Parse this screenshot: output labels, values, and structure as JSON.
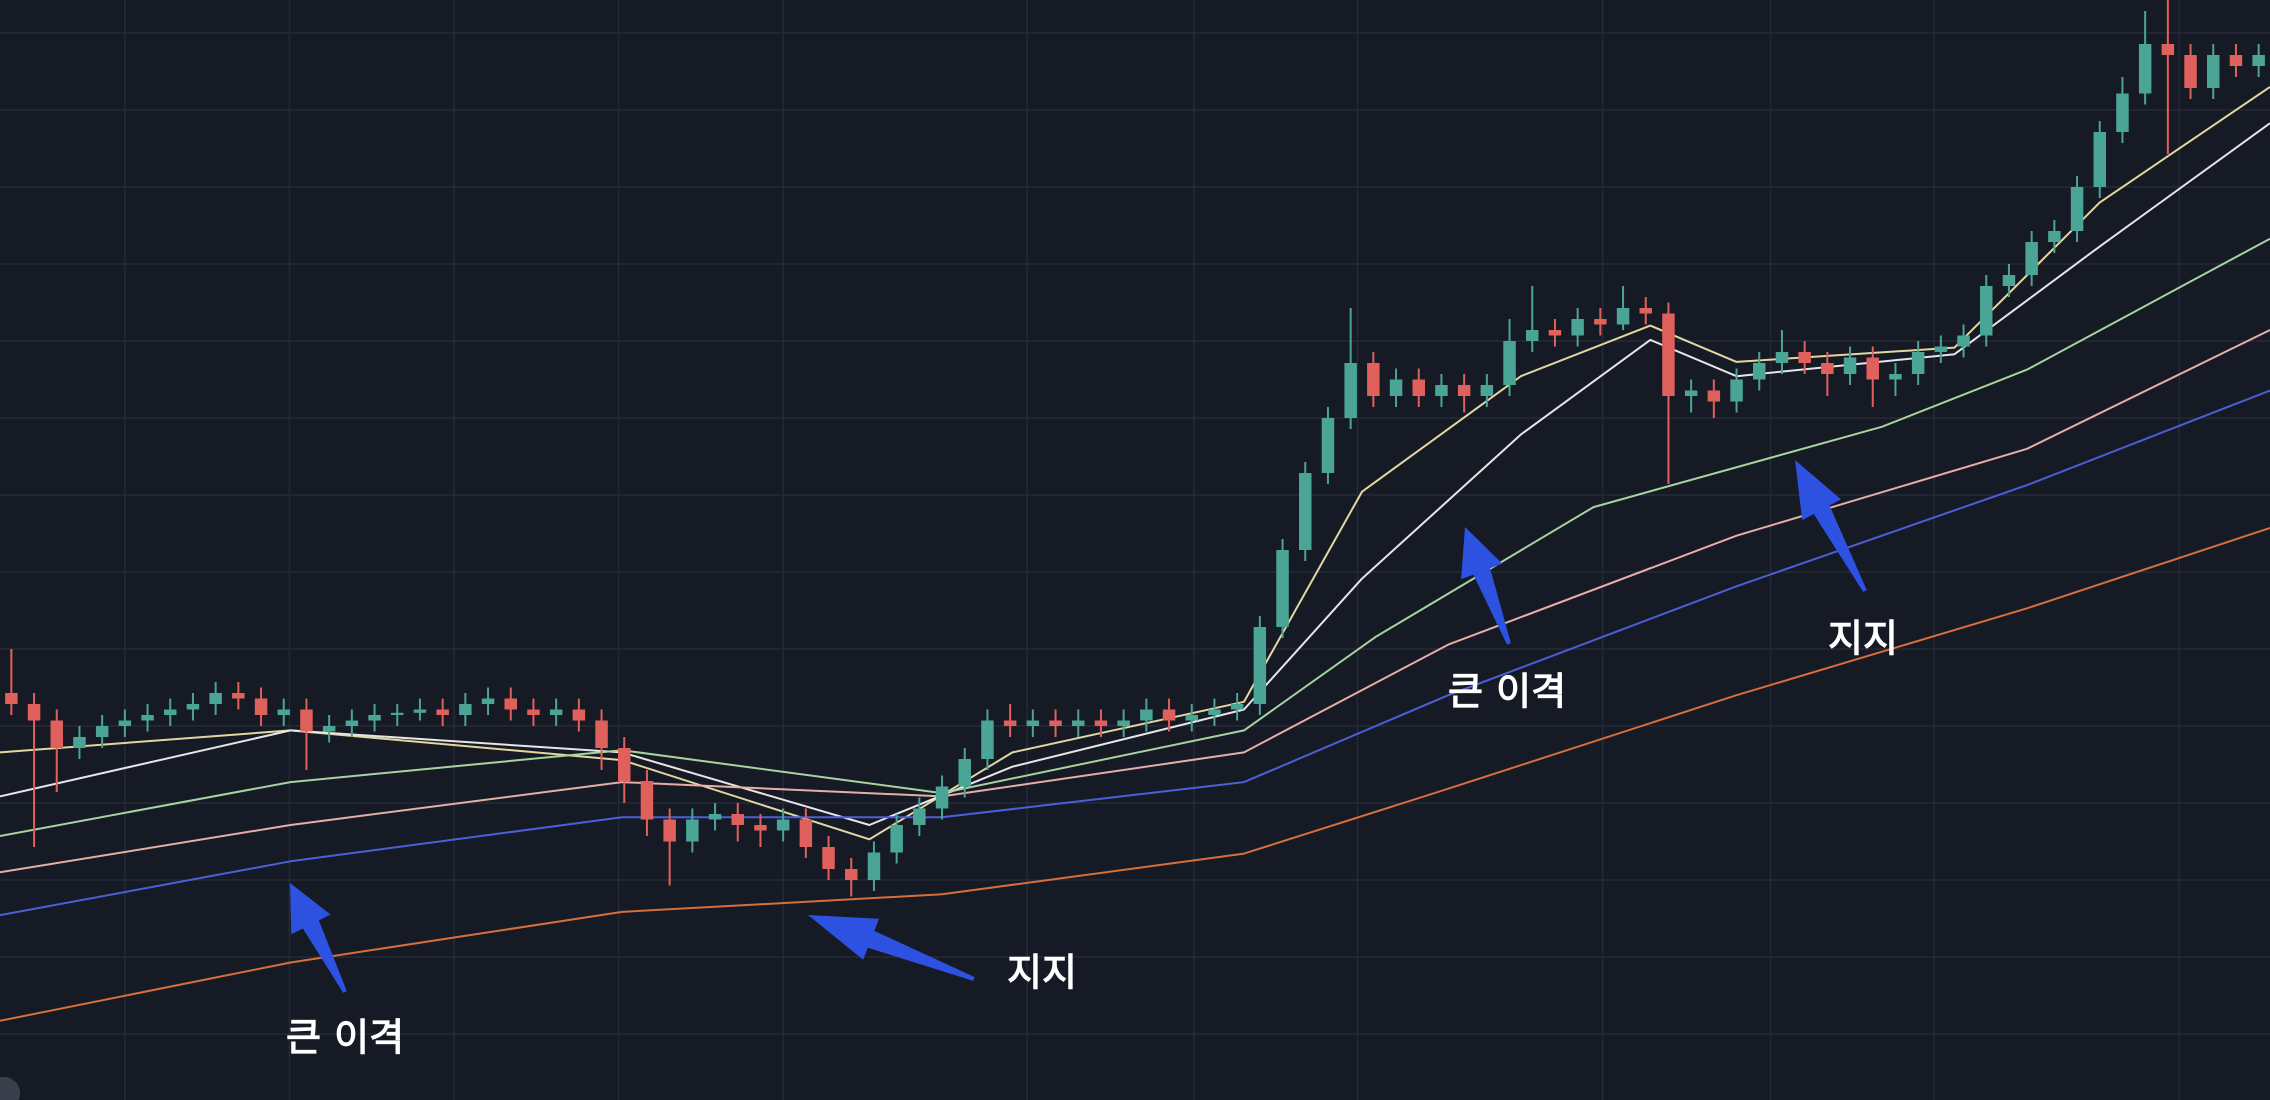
{
  "chart_data": {
    "type": "candlestick",
    "xlim": [
      0,
      100
    ],
    "ylim": [
      0,
      100
    ],
    "xticks": [
      5.5,
      12.75,
      20,
      27.25,
      34.5,
      45.25,
      52.6,
      59.8,
      70.6,
      78,
      85.2,
      96
    ],
    "yticks": [
      6,
      13,
      20,
      27,
      34,
      41,
      48,
      55,
      62,
      69,
      76,
      83,
      90,
      97
    ],
    "grid": true,
    "up_color": "#4aa596",
    "down_color": "#e0605c",
    "candles": {
      "open": [
        37,
        36,
        34.5,
        32,
        33,
        34,
        34.5,
        35,
        35.5,
        36,
        37,
        36.5,
        35,
        35.5,
        33.5,
        34,
        34.5,
        35,
        35.2,
        35.5,
        35,
        36,
        36.5,
        35.5,
        35,
        35.5,
        34.5,
        32,
        29,
        25.5,
        23.5,
        25.5,
        26,
        25,
        24.5,
        25.5,
        23,
        21,
        20,
        22.5,
        25,
        26.5,
        28.5,
        31,
        34.5,
        34,
        34.5,
        34,
        34.5,
        34,
        34.5,
        35.5,
        34.5,
        35,
        35.5,
        36,
        43,
        50,
        57,
        62,
        67,
        64,
        65.5,
        64,
        65,
        64,
        65,
        69,
        70,
        69.5,
        71,
        70.5,
        72,
        71.5,
        64,
        64.5,
        63.5,
        65.5,
        67,
        68,
        67,
        66,
        67.5,
        65.5,
        66,
        68,
        68.5,
        69.5,
        74,
        75,
        78,
        79,
        83,
        88,
        91.5,
        96,
        95,
        92,
        95,
        94
      ],
      "high": [
        41,
        37,
        35.5,
        34,
        35,
        35.5,
        36,
        36.5,
        37,
        38,
        38,
        37.5,
        36.5,
        36.5,
        35,
        35.5,
        36,
        36,
        36.5,
        36.5,
        37,
        37.5,
        37.5,
        36.5,
        36.5,
        36.5,
        35.5,
        33,
        30,
        26.5,
        26.5,
        27,
        27,
        26,
        26.5,
        26.5,
        24,
        22,
        23.5,
        26,
        27.5,
        29.5,
        32,
        35.5,
        36,
        35.5,
        35.5,
        35.5,
        35.5,
        35.5,
        36.5,
        36.5,
        36,
        36.5,
        37,
        44,
        51,
        58,
        63,
        72,
        68,
        66.5,
        66.5,
        66,
        66,
        66,
        71,
        74,
        71,
        72,
        72,
        74,
        73,
        72.5,
        65.5,
        65.5,
        66.5,
        68,
        70,
        69,
        68,
        68.5,
        68.5,
        67,
        69,
        69.5,
        70.5,
        75,
        76,
        79,
        80,
        84,
        89,
        93,
        99,
        100,
        96,
        96,
        96,
        96
      ],
      "low": [
        35,
        23,
        28,
        31,
        32,
        33,
        33.5,
        34,
        34.5,
        35,
        35.5,
        34,
        34,
        30,
        32.5,
        33,
        33.5,
        34,
        34.5,
        34,
        34,
        35,
        34.5,
        34,
        34,
        33.5,
        30,
        27,
        24,
        19.5,
        22.5,
        24.5,
        23.5,
        23,
        23.5,
        22,
        20,
        18.5,
        19,
        21.5,
        24,
        25.5,
        27.5,
        30,
        33,
        33,
        33,
        33,
        33,
        33,
        33.5,
        33.5,
        33.5,
        34,
        34.5,
        35,
        42,
        49,
        56,
        61,
        63,
        63,
        63,
        63,
        62.5,
        63,
        64,
        68,
        68.5,
        68.5,
        69.5,
        70,
        70.5,
        56,
        62.5,
        62,
        62.5,
        64.5,
        66,
        66,
        64,
        65,
        63,
        64,
        65,
        67,
        67.5,
        68.5,
        73,
        74,
        77,
        78,
        82,
        87,
        90.5,
        86,
        91,
        91,
        93,
        93
      ],
      "close": [
        36,
        34.5,
        32,
        33,
        34,
        34.5,
        35,
        35.5,
        36,
        37,
        36.5,
        35,
        35.5,
        33.5,
        34,
        34.5,
        35,
        35.2,
        35.5,
        35,
        36,
        36.5,
        35.5,
        35,
        35.5,
        34.5,
        32,
        29,
        25.5,
        23.5,
        25.5,
        26,
        25,
        24.5,
        25.5,
        23,
        21,
        20,
        22.5,
        25,
        26.5,
        28.5,
        31,
        34.5,
        34,
        34.5,
        34,
        34.5,
        34,
        34.5,
        35.5,
        34.5,
        35,
        35.5,
        36,
        43,
        50,
        57,
        62,
        67,
        64,
        65.5,
        64,
        65,
        64,
        65,
        69,
        70,
        69.5,
        71,
        70.5,
        72,
        71.5,
        64,
        64.5,
        63.5,
        65.5,
        67,
        68,
        67,
        66,
        67.5,
        65.5,
        66,
        68,
        68.5,
        69.5,
        74,
        75,
        78,
        79,
        83,
        88,
        91.5,
        96,
        95,
        92,
        95,
        94,
        95
      ]
    },
    "lines": [
      {
        "color": "#e3d7a1",
        "x": [
          0,
          12.8,
          27.4,
          38.3,
          44.6,
          54.8,
          60,
          67,
          72.7,
          76.5,
          86.1,
          92.5,
          100
        ],
        "values": [
          31.6,
          33.6,
          30.9,
          23.7,
          31.6,
          36.2,
          55.3,
          65.8,
          70.4,
          67.1,
          68.4,
          81.6,
          92.1
        ]
      },
      {
        "color": "#e6e6e6",
        "x": [
          0,
          12.8,
          27.4,
          38.3,
          44.6,
          54.8,
          60,
          67,
          72.7,
          76.5,
          86.1,
          92.5,
          100
        ],
        "values": [
          27.6,
          33.6,
          31.6,
          25,
          30.3,
          35.5,
          47.4,
          60.5,
          69.1,
          65.8,
          67.8,
          77.6,
          88.8
        ]
      },
      {
        "color": "#a6d3a0",
        "x": [
          0,
          12.8,
          27.4,
          41.5,
          54.8,
          60.6,
          70.2,
          82.9,
          89.3,
          100
        ],
        "values": [
          24,
          28.9,
          31.8,
          27.9,
          33.6,
          42.1,
          53.9,
          61.2,
          66.4,
          78.3
        ]
      },
      {
        "color": "#e5aea6",
        "x": [
          0,
          12.8,
          27.4,
          41.5,
          54.8,
          63.8,
          76.5,
          89.3,
          100
        ],
        "values": [
          20.7,
          25,
          28.9,
          27.6,
          31.6,
          41.4,
          51.3,
          59.2,
          70
        ]
      },
      {
        "color": "#4b5fd6",
        "x": [
          0,
          12.8,
          27.4,
          41.5,
          54.8,
          63.8,
          76.5,
          89.3,
          100
        ],
        "values": [
          16.8,
          21.7,
          25.7,
          25.7,
          28.9,
          36.8,
          46.7,
          55.9,
          64.5
        ]
      },
      {
        "color": "#d66f3a",
        "x": [
          0,
          12.8,
          27.4,
          41.5,
          54.8,
          63.8,
          76.5,
          89.3,
          100
        ],
        "values": [
          7.2,
          12.5,
          17.1,
          18.7,
          22.4,
          28.3,
          36.8,
          44.7,
          52
        ]
      }
    ],
    "annotations": [
      "큰 이격",
      "지지",
      "큰 이격",
      "지지"
    ],
    "arrow_color": "#2d52e2"
  }
}
